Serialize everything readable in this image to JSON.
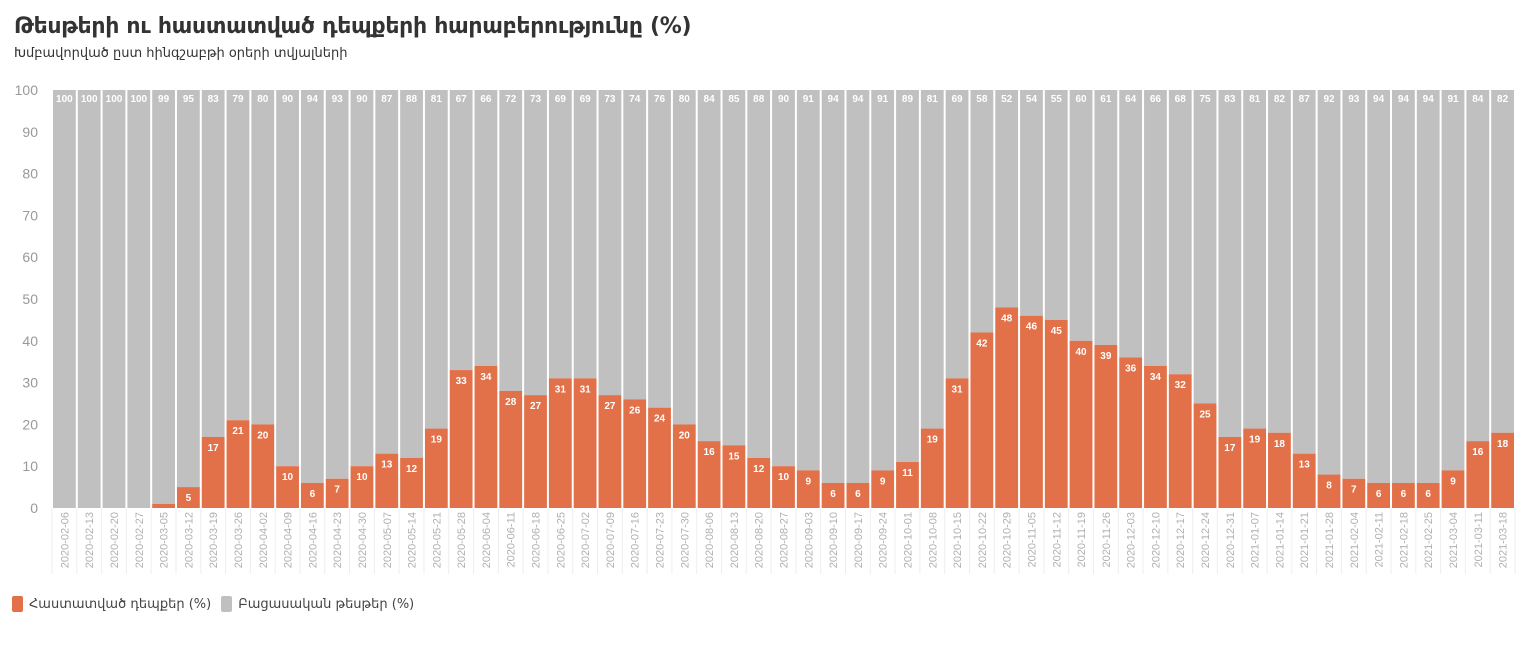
{
  "header": {
    "title": "Թեսթերի ու հաստատված դեպքերի հարաբերությունը (%)",
    "subtitle": "Խմբավորված ըստ հինգշաբթի օրերի տվյալների"
  },
  "legend": {
    "confirmed_label": "Հաստատված դեպքեր (%)",
    "negative_label": "Բացասական թեսթեր (%)"
  },
  "colors": {
    "confirmed": "#e2714a",
    "negative": "#c0c0c0",
    "axis_text": "#999999",
    "bar_label": "#ffffff"
  },
  "chart_data": {
    "type": "bar",
    "stacked": true,
    "ylim": [
      0,
      100
    ],
    "yticks": [
      0,
      10,
      20,
      30,
      40,
      50,
      60,
      70,
      80,
      90,
      100
    ],
    "grid": false,
    "legend_position": "bottom-left",
    "categories": [
      "2020-02-06",
      "2020-02-13",
      "2020-02-20",
      "2020-02-27",
      "2020-03-05",
      "2020-03-12",
      "2020-03-19",
      "2020-03-26",
      "2020-04-02",
      "2020-04-09",
      "2020-04-16",
      "2020-04-23",
      "2020-04-30",
      "2020-05-07",
      "2020-05-14",
      "2020-05-21",
      "2020-05-28",
      "2020-06-04",
      "2020-06-11",
      "2020-06-18",
      "2020-06-25",
      "2020-07-02",
      "2020-07-09",
      "2020-07-16",
      "2020-07-23",
      "2020-07-30",
      "2020-08-06",
      "2020-08-13",
      "2020-08-20",
      "2020-08-27",
      "2020-09-03",
      "2020-09-10",
      "2020-09-17",
      "2020-09-24",
      "2020-10-01",
      "2020-10-08",
      "2020-10-15",
      "2020-10-22",
      "2020-10-29",
      "2020-11-05",
      "2020-11-12",
      "2020-11-19",
      "2020-11-26",
      "2020-12-03",
      "2020-12-10",
      "2020-12-17",
      "2020-12-24",
      "2020-12-31",
      "2021-01-07",
      "2021-01-14",
      "2021-01-21",
      "2021-01-28",
      "2021-02-04",
      "2021-02-11",
      "2021-02-18",
      "2021-02-25",
      "2021-03-04",
      "2021-03-11",
      "2021-03-18"
    ],
    "series": [
      {
        "name": "Հաստատված դեպքեր (%)",
        "values": [
          0,
          0,
          0,
          0,
          1,
          5,
          17,
          21,
          20,
          10,
          6,
          7,
          10,
          13,
          12,
          19,
          33,
          34,
          28,
          27,
          31,
          31,
          27,
          26,
          24,
          20,
          16,
          15,
          12,
          10,
          9,
          6,
          6,
          9,
          11,
          19,
          31,
          42,
          48,
          46,
          45,
          40,
          39,
          36,
          34,
          32,
          25,
          17,
          19,
          18,
          13,
          8,
          7,
          6,
          6,
          6,
          9,
          16,
          18
        ],
        "labels": [
          "",
          "",
          "",
          "",
          "",
          "5",
          "17",
          "21",
          "20",
          "10",
          "6",
          "7",
          "10",
          "13",
          "12",
          "19",
          "33",
          "34",
          "28",
          "27",
          "31",
          "31",
          "27",
          "26",
          "24",
          "20",
          "16",
          "15",
          "12",
          "10",
          "9",
          "6",
          "6",
          "9",
          "11",
          "19",
          "31",
          "42",
          "48",
          "46",
          "45",
          "40",
          "39",
          "36",
          "34",
          "32",
          "25",
          "17",
          "19",
          "18",
          "13",
          "8",
          "7",
          "6",
          "6",
          "6",
          "9",
          "16",
          "18"
        ]
      },
      {
        "name": "Բացասական թեսթեր (%)",
        "values": [
          100,
          100,
          100,
          100,
          99,
          95,
          83,
          79,
          80,
          90,
          94,
          93,
          90,
          87,
          88,
          81,
          67,
          66,
          72,
          73,
          69,
          69,
          73,
          74,
          76,
          80,
          84,
          85,
          88,
          90,
          91,
          94,
          94,
          91,
          89,
          81,
          69,
          58,
          52,
          54,
          55,
          60,
          61,
          64,
          66,
          68,
          75,
          83,
          81,
          82,
          87,
          92,
          93,
          94,
          94,
          94,
          91,
          84,
          82
        ]
      }
    ]
  }
}
